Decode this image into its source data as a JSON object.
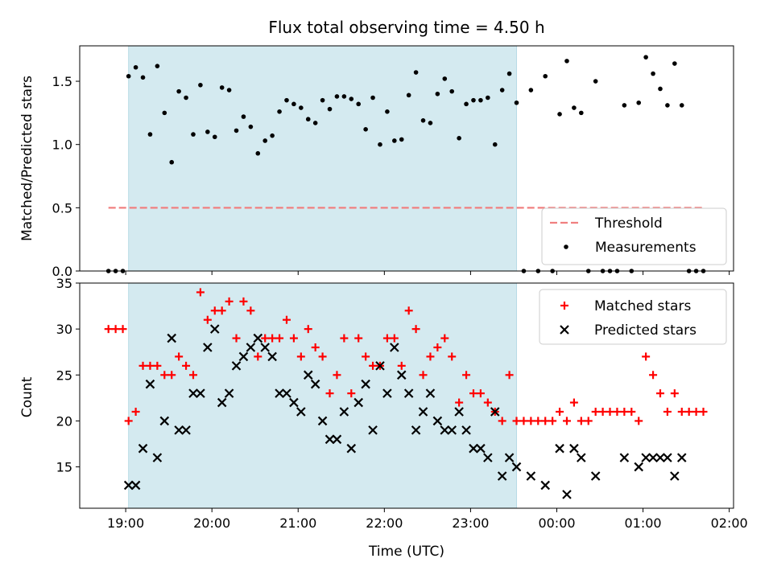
{
  "title": "Flux total observing time = 4.50 h",
  "chart_data": [
    {
      "type": "scatter",
      "panel": "top",
      "title": "Flux total observing time = 4.50 h",
      "xlabel": "",
      "ylabel": "Matched/Predicted stars",
      "xlim": [
        "18:28",
        "02:03"
      ],
      "ylim": [
        0.0,
        1.78
      ],
      "yticks": [
        0.0,
        0.5,
        1.0,
        1.5
      ],
      "ytick_labels": [
        "0.0",
        "0.5",
        "1.0",
        "1.5"
      ],
      "legend_position": "lower right",
      "shaded_span": {
        "start": "19:02",
        "end": "23:32",
        "color": "#d4eaf0"
      },
      "threshold": {
        "name": "Threshold",
        "value": 0.5,
        "x_start": "18:48",
        "x_end": "01:43",
        "color": "#f08080",
        "style": "dashed"
      },
      "series": [
        {
          "name": "Measurements",
          "color": "#000000",
          "marker": "dot",
          "x": [
            "18:48",
            "18:53",
            "18:58",
            "19:02",
            "19:07",
            "19:12",
            "19:17",
            "19:22",
            "19:27",
            "19:32",
            "19:37",
            "19:42",
            "19:47",
            "19:52",
            "19:57",
            "20:02",
            "20:07",
            "20:12",
            "20:17",
            "20:22",
            "20:27",
            "20:32",
            "20:37",
            "20:42",
            "20:47",
            "20:52",
            "20:57",
            "21:02",
            "21:07",
            "21:12",
            "21:17",
            "21:22",
            "21:27",
            "21:32",
            "21:37",
            "21:42",
            "21:47",
            "21:52",
            "21:57",
            "22:02",
            "22:07",
            "22:12",
            "22:17",
            "22:22",
            "22:27",
            "22:32",
            "22:37",
            "22:42",
            "22:47",
            "22:52",
            "22:57",
            "23:02",
            "23:07",
            "23:12",
            "23:17",
            "23:22",
            "23:27",
            "23:32",
            "23:37",
            "23:42",
            "23:47",
            "23:52",
            "23:57",
            "00:02",
            "00:07",
            "00:12",
            "00:17",
            "00:22",
            "00:27",
            "00:32",
            "00:37",
            "00:42",
            "00:47",
            "00:52",
            "00:57",
            "01:02",
            "01:07",
            "01:12",
            "01:17",
            "01:22",
            "01:27",
            "01:32",
            "01:37",
            "01:42"
          ],
          "y": [
            0.0,
            0.0,
            0.0,
            1.54,
            1.61,
            1.53,
            1.08,
            1.62,
            1.25,
            0.86,
            1.42,
            1.37,
            1.08,
            1.47,
            1.1,
            1.06,
            1.45,
            1.43,
            1.11,
            1.22,
            1.14,
            0.93,
            1.03,
            1.07,
            1.26,
            1.35,
            1.32,
            1.29,
            1.2,
            1.17,
            1.35,
            1.28,
            1.38,
            1.38,
            1.36,
            1.32,
            1.12,
            1.37,
            1.0,
            1.26,
            1.03,
            1.04,
            1.39,
            1.57,
            1.19,
            1.17,
            1.4,
            1.52,
            1.42,
            1.05,
            1.32,
            1.35,
            1.35,
            1.37,
            1.0,
            1.43,
            1.56,
            1.33,
            0.0,
            1.43,
            0.0,
            1.54,
            0.0,
            1.24,
            1.66,
            1.29,
            1.25,
            0.0,
            1.5,
            0.0,
            0.0,
            0.0,
            1.31,
            0.0,
            1.33,
            1.69,
            1.56,
            1.44,
            1.31,
            1.64,
            1.31,
            0.0,
            0.0,
            0.0
          ]
        }
      ]
    },
    {
      "type": "scatter",
      "panel": "bottom",
      "title": "",
      "xlabel": "Time (UTC)",
      "ylabel": "Count",
      "xlim": [
        "18:28",
        "02:03"
      ],
      "ylim": [
        10.5,
        35
      ],
      "yticks": [
        15,
        20,
        25,
        30,
        35
      ],
      "ytick_labels": [
        "15",
        "20",
        "25",
        "30",
        "35"
      ],
      "xticks": [
        "19:00",
        "20:00",
        "21:00",
        "22:00",
        "23:00",
        "00:00",
        "01:00",
        "02:00"
      ],
      "xtick_labels": [
        "19:00",
        "20:00",
        "21:00",
        "22:00",
        "23:00",
        "00:00",
        "01:00",
        "02:00"
      ],
      "legend_position": "upper right",
      "shaded_span": {
        "start": "19:02",
        "end": "23:32",
        "color": "#d4eaf0"
      },
      "series": [
        {
          "name": "Matched stars",
          "color": "#ff0000",
          "marker": "plus",
          "x": [
            "18:48",
            "18:53",
            "18:58",
            "19:02",
            "19:07",
            "19:12",
            "19:17",
            "19:22",
            "19:27",
            "19:32",
            "19:37",
            "19:42",
            "19:47",
            "19:52",
            "19:57",
            "20:02",
            "20:07",
            "20:12",
            "20:17",
            "20:22",
            "20:27",
            "20:32",
            "20:37",
            "20:42",
            "20:47",
            "20:52",
            "20:57",
            "21:02",
            "21:07",
            "21:12",
            "21:17",
            "21:22",
            "21:27",
            "21:32",
            "21:37",
            "21:42",
            "21:47",
            "21:52",
            "21:57",
            "22:02",
            "22:07",
            "22:12",
            "22:17",
            "22:22",
            "22:27",
            "22:32",
            "22:37",
            "22:42",
            "22:47",
            "22:52",
            "22:57",
            "23:02",
            "23:07",
            "23:12",
            "23:17",
            "23:22",
            "23:27",
            "23:32",
            "23:37",
            "23:42",
            "23:47",
            "23:52",
            "23:57",
            "00:02",
            "00:07",
            "00:12",
            "00:17",
            "00:22",
            "00:27",
            "00:32",
            "00:37",
            "00:42",
            "00:47",
            "00:52",
            "00:57",
            "01:02",
            "01:07",
            "01:12",
            "01:17",
            "01:22",
            "01:27",
            "01:32",
            "01:37",
            "01:42"
          ],
          "y": [
            30,
            30,
            30,
            20,
            21,
            26,
            26,
            26,
            25,
            25,
            27,
            26,
            25,
            34,
            31,
            32,
            32,
            33,
            29,
            33,
            32,
            27,
            29,
            29,
            29,
            31,
            29,
            27,
            30,
            28,
            27,
            23,
            25,
            29,
            23,
            29,
            27,
            26,
            26,
            29,
            29,
            26,
            32,
            30,
            25,
            27,
            28,
            29,
            27,
            22,
            25,
            23,
            23,
            22,
            21,
            20,
            25,
            20,
            20,
            20,
            20,
            20,
            20,
            21,
            20,
            22,
            20,
            20,
            21,
            21,
            21,
            21,
            21,
            21,
            20,
            27,
            25,
            23,
            21,
            23,
            21,
            21,
            21,
            21
          ]
        },
        {
          "name": "Predicted stars",
          "color": "#000000",
          "marker": "x",
          "x": [
            "19:02",
            "19:07",
            "19:12",
            "19:17",
            "19:22",
            "19:27",
            "19:32",
            "19:37",
            "19:42",
            "19:47",
            "19:52",
            "19:57",
            "20:02",
            "20:07",
            "20:12",
            "20:17",
            "20:22",
            "20:27",
            "20:32",
            "20:37",
            "20:42",
            "20:47",
            "20:52",
            "20:57",
            "21:02",
            "21:07",
            "21:12",
            "21:17",
            "21:22",
            "21:27",
            "21:32",
            "21:37",
            "21:42",
            "21:47",
            "21:52",
            "21:57",
            "22:02",
            "22:07",
            "22:12",
            "22:17",
            "22:22",
            "22:27",
            "22:32",
            "22:37",
            "22:42",
            "22:47",
            "22:52",
            "22:57",
            "23:02",
            "23:07",
            "23:12",
            "23:17",
            "23:22",
            "23:27",
            "23:32",
            "23:42",
            "23:52",
            "00:02",
            "00:07",
            "00:12",
            "00:17",
            "00:27",
            "00:47",
            "00:57",
            "01:02",
            "01:07",
            "01:12",
            "01:17",
            "01:22",
            "01:27"
          ],
          "y": [
            13,
            13,
            17,
            24,
            16,
            20,
            29,
            19,
            19,
            23,
            23,
            28,
            30,
            22,
            23,
            26,
            27,
            28,
            29,
            28,
            27,
            23,
            23,
            22,
            21,
            25,
            24,
            20,
            18,
            18,
            21,
            17,
            22,
            24,
            19,
            26,
            23,
            28,
            25,
            23,
            19,
            21,
            23,
            20,
            19,
            19,
            21,
            19,
            17,
            17,
            16,
            21,
            14,
            16,
            15,
            14,
            13,
            17,
            12,
            17,
            16,
            14,
            16,
            15,
            16,
            16,
            16,
            16,
            14,
            16
          ]
        }
      ]
    }
  ]
}
